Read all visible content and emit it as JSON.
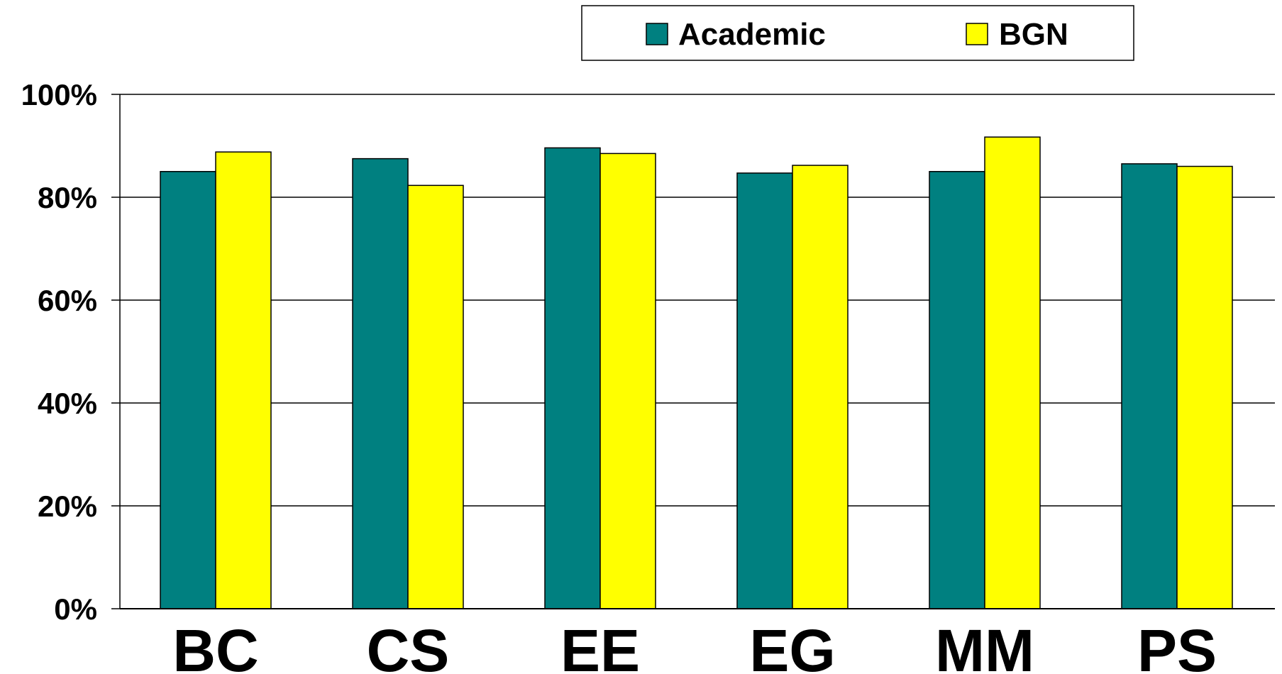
{
  "chart_data": {
    "type": "bar",
    "categories": [
      "BC",
      "CS",
      "EE",
      "EG",
      "MM",
      "PS"
    ],
    "series": [
      {
        "name": "Academic",
        "color": "#008080",
        "values": [
          85,
          87.5,
          89.6,
          84.7,
          85,
          86.5
        ]
      },
      {
        "name": "BGN",
        "color": "#ffff00",
        "values": [
          88.8,
          82.3,
          88.5,
          86.2,
          91.7,
          86
        ]
      }
    ],
    "ylim": [
      0,
      100
    ],
    "yticks": [
      {
        "value": 0,
        "label": "0%"
      },
      {
        "value": 20,
        "label": "20%"
      },
      {
        "value": 40,
        "label": "40%"
      },
      {
        "value": 60,
        "label": "60%"
      },
      {
        "value": 80,
        "label": "80%"
      },
      {
        "value": 100,
        "label": "100%"
      }
    ],
    "grid": true,
    "legend": {
      "placement": "top-center",
      "boxed": true
    }
  }
}
